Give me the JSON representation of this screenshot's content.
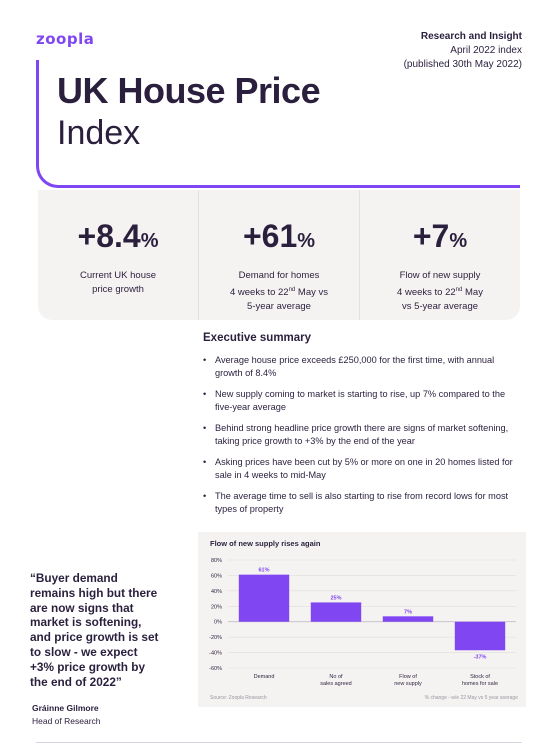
{
  "brand": {
    "logo": "zoopla",
    "accent": "#8046f1"
  },
  "meta": {
    "title": "Research and Insight",
    "line2": "April 2022 index",
    "line3": "(published 30th May 2022)"
  },
  "page_title": {
    "line1": "UK House Price",
    "line2": "Index"
  },
  "stats": [
    {
      "value": "+8.4",
      "unit": "%",
      "label_line1": "Current UK house",
      "label_line2": "price growth",
      "label_line3": ""
    },
    {
      "value": "+61",
      "unit": "%",
      "label_line1": "Demand for homes",
      "label_line2_pre": "4 weeks to 22",
      "label_line2_sup": "nd",
      "label_line2_post": " May vs",
      "label_line3": "5-year average"
    },
    {
      "value": "+7",
      "unit": "%",
      "label_line1": "Flow of new supply",
      "label_line2_pre": "4 weeks to 22",
      "label_line2_sup": "nd",
      "label_line2_post": " May",
      "label_line3": "vs 5-year average"
    }
  ],
  "summary": {
    "title": "Executive summary",
    "bullets": [
      "Average house price exceeds £250,000 for the first time, with annual growth of 8.4%",
      "New supply coming to market is starting to rise, up 7% compared to the five-year average",
      "Behind strong headline price growth there are signs of market softening, taking price growth to +3% by the end of the year",
      "Asking prices have been cut by 5% or more on one in 20 homes listed for sale in 4 weeks to mid-May",
      "The average time to sell is also starting to rise from record lows for most types of property"
    ]
  },
  "quote": {
    "text": "“Buyer demand remains high but there are now signs that market is softening, and price growth is set to slow - we expect +3% price growth by the end of 2022”",
    "author_name": "Gráinne Gilmore",
    "author_role": "Head of Research"
  },
  "chart_data": {
    "type": "bar",
    "title": "Flow of new supply rises again",
    "categories": [
      "Demand",
      "No of sales agreed",
      "Flow of new supply",
      "Stock of homes for sale"
    ],
    "category_lines": [
      [
        "Demand"
      ],
      [
        "No of",
        "sales agreed"
      ],
      [
        "Flow of",
        "new supply"
      ],
      [
        "Stock of",
        "homes for sale"
      ]
    ],
    "values": [
      61,
      25,
      7,
      -37
    ],
    "value_labels": [
      "61%",
      "25%",
      "7%",
      "-37%"
    ],
    "ylim": [
      -60,
      80
    ],
    "yticks": [
      80,
      60,
      40,
      20,
      0,
      -20,
      -40,
      -60
    ],
    "ytick_labels": [
      "80%",
      "60%",
      "40%",
      "20%",
      "0%",
      "-20%",
      "-40%",
      "-60%"
    ],
    "xlabel": "",
    "ylabel": "",
    "grid": true,
    "bar_color": "#8046f1",
    "source": "Source: Zoopla Research",
    "note": "% change - w/e 22 May vs 5 year average"
  }
}
